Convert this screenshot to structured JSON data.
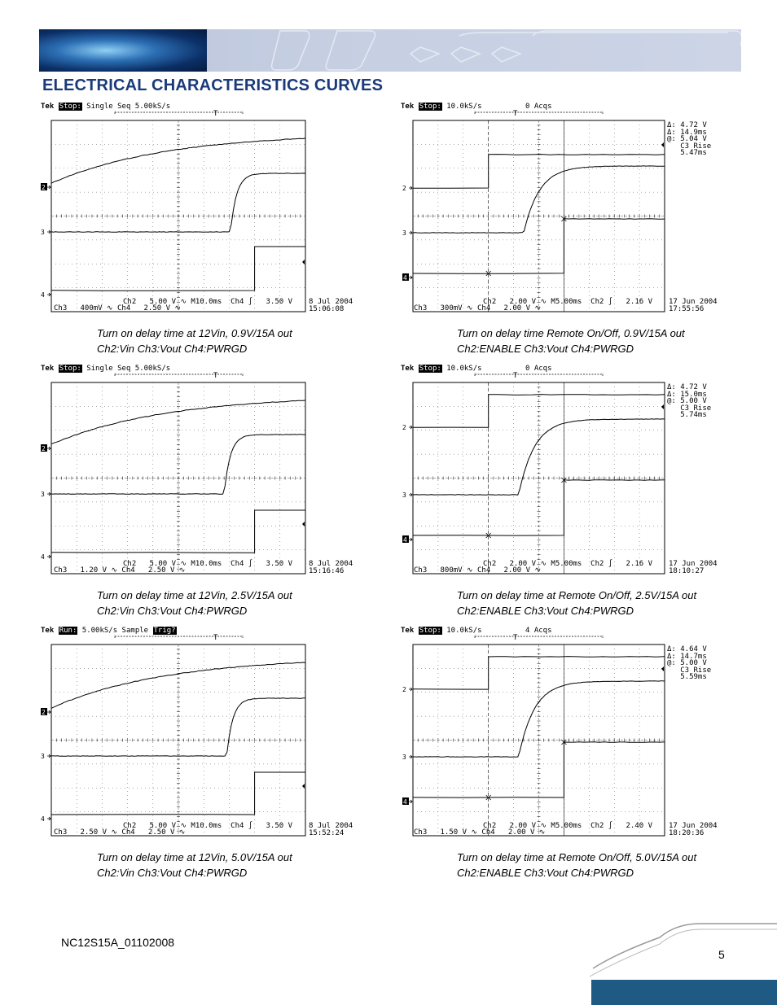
{
  "header": {
    "title": "ELECTRICAL CHARACTERISTICS CURVES"
  },
  "footer": {
    "doc_id": "NC12S15A_01102008",
    "page_number": "5"
  },
  "colors": {
    "title": "#1a3a7a",
    "band": "#c6cfe2",
    "footer_bar": "#1f5a85"
  },
  "panels": [
    {
      "id": "p1",
      "kind": "vin",
      "top_status": "Stop:",
      "top_mode": "Single Seq",
      "top_rate": "5.00kS/s",
      "top_extra": "",
      "top_extra_box": "",
      "ch_labels": [
        "2",
        "3",
        "4"
      ],
      "bottom_line1": "Ch3   400mV",
      "bottom_mid_ch2": "Ch2   5.00 V",
      "bottom_mid_ch4": "Ch4   2.50 V",
      "bottom_time": "M10.0ms  Ch4",
      "bottom_trig": "3.50 V",
      "date": "8 Jul 2004",
      "time": "15:06:08",
      "measurements": [],
      "caption1": "Turn on delay time at 12Vin, 0.9V/15A out",
      "caption2": "Ch2:Vin Ch3:Vout Ch4:PWRGD"
    },
    {
      "id": "p2",
      "kind": "enable",
      "top_status": "Stop:",
      "top_mode": "",
      "top_rate": "10.0kS/s",
      "top_extra": "0 Acqs",
      "top_extra_box": "",
      "ch_labels": [
        "2",
        "3",
        "4"
      ],
      "bottom_line1": "Ch3   300mV",
      "bottom_mid_ch2": "Ch2   2.00 V",
      "bottom_mid_ch4": "Ch4   2.00 V",
      "bottom_time": "M5.00ms  Ch2",
      "bottom_trig": "2.16 V",
      "date": "17 Jun 2004",
      "time": "17:55:56",
      "measurements": [
        "Δ: 4.72 V",
        "Δ: 14.9ms",
        "@: 5.04 V",
        "   C3 Rise",
        "   5.47ms"
      ],
      "caption1": "Turn on delay time Remote On/Off, 0.9V/15A out",
      "caption2": "Ch2:ENABLE Ch3:Vout Ch4:PWRGD"
    },
    {
      "id": "p3",
      "kind": "vin",
      "top_status": "Stop:",
      "top_mode": "Single Seq",
      "top_rate": "5.00kS/s",
      "top_extra": "",
      "top_extra_box": "",
      "ch_labels": [
        "2",
        "3",
        "4"
      ],
      "bottom_line1": "Ch3   1.20 V",
      "bottom_mid_ch2": "Ch2   5.00 V",
      "bottom_mid_ch4": "Ch4   2.50 V",
      "bottom_time": "M10.0ms  Ch4",
      "bottom_trig": "3.50 V",
      "date": "8 Jul 2004",
      "time": "15:16:46",
      "measurements": [],
      "caption1": "Turn on delay time at 12Vin, 2.5V/15A out",
      "caption2": "Ch2:Vin Ch3:Vout Ch4:PWRGD"
    },
    {
      "id": "p4",
      "kind": "enable",
      "top_status": "Stop:",
      "top_mode": "",
      "top_rate": "10.0kS/s",
      "top_extra": "0 Acqs",
      "top_extra_box": "",
      "ch_labels": [
        "2",
        "3",
        "4"
      ],
      "bottom_line1": "Ch3   800mV",
      "bottom_mid_ch2": "Ch2   2.00 V",
      "bottom_mid_ch4": "Ch4   2.00 V",
      "bottom_time": "M5.00ms  Ch2",
      "bottom_trig": "2.16 V",
      "date": "17 Jun 2004",
      "time": "18:10:27",
      "measurements": [
        "Δ: 4.72 V",
        "Δ: 15.0ms",
        "@: 5.00 V",
        "   C3 Rise",
        "   5.74ms"
      ],
      "caption1": "Turn on delay time at Remote On/Off, 2.5V/15A out",
      "caption2": "Ch2:ENABLE Ch3:Vout Ch4:PWRGD"
    },
    {
      "id": "p5",
      "kind": "vin",
      "top_status": "Run:",
      "top_mode": "Sample",
      "top_rate": "5.00kS/s",
      "top_extra": "",
      "top_extra_box": "Trig?",
      "ch_labels": [
        "2",
        "3",
        "4"
      ],
      "bottom_line1": "Ch3   2.50 V",
      "bottom_mid_ch2": "Ch2   5.00 V",
      "bottom_mid_ch4": "Ch4   2.50 V",
      "bottom_time": "M10.0ms  Ch4",
      "bottom_trig": "3.50 V",
      "date": "8 Jul 2004",
      "time": "15:52:24",
      "measurements": [],
      "caption1": "Turn on delay time at 12Vin, 5.0V/15A out",
      "caption2": "Ch2:Vin Ch3:Vout Ch4:PWRGD"
    },
    {
      "id": "p6",
      "kind": "enable",
      "top_status": "Stop:",
      "top_mode": "",
      "top_rate": "10.0kS/s",
      "top_extra": "4 Acqs",
      "top_extra_box": "",
      "ch_labels": [
        "2",
        "3",
        "4"
      ],
      "bottom_line1": "Ch3   1.50 V",
      "bottom_mid_ch2": "Ch2   2.00 V",
      "bottom_mid_ch4": "Ch4   2.00 V",
      "bottom_time": "M5.00ms  Ch2",
      "bottom_trig": "2.40 V",
      "date": "17 Jun 2004",
      "time": "18:20:36",
      "measurements": [
        "Δ: 4.64 V",
        "Δ: 14.7ms",
        "@: 5.00 V",
        "   C3 Rise",
        "   5.59ms"
      ],
      "caption1": "Turn on delay time at Remote On/Off, 5.0V/15A out",
      "caption2": "Ch2:ENABLE Ch3:Vout Ch4:PWRGD"
    }
  ]
}
